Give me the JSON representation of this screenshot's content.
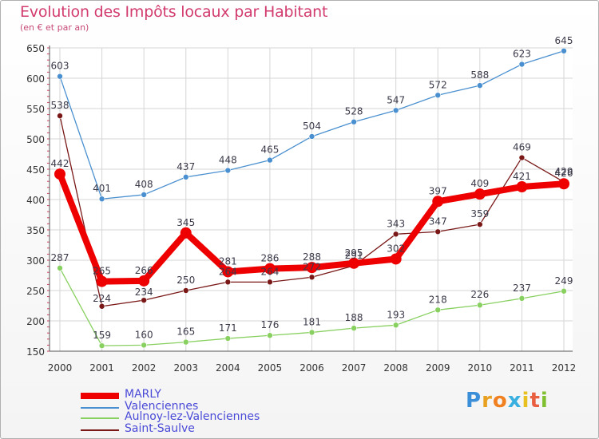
{
  "header": {
    "title": "Evolution des Impôts locaux par Habitant",
    "subtitle": "(en € et par an)"
  },
  "logo": {
    "letters": [
      "P",
      "r",
      "o",
      "x",
      "i",
      "t",
      "i"
    ],
    "colors": [
      "#3a8fd8",
      "#e8a020",
      "#f08020",
      "#3ab0e0",
      "#e8c020",
      "#e86040",
      "#80c030"
    ]
  },
  "chart_data": {
    "type": "line",
    "title": "Evolution des Impôts locaux par Habitant",
    "subtitle": "(en € et par an)",
    "x": [
      "2000",
      "2001",
      "2002",
      "2003",
      "2004",
      "2005",
      "2006",
      "2007",
      "2008",
      "2009",
      "2010",
      "2011",
      "2012"
    ],
    "ylim": [
      150,
      650
    ],
    "yticks": [
      150,
      200,
      250,
      300,
      350,
      400,
      450,
      500,
      550,
      600,
      650
    ],
    "grid": true,
    "legend": "bottom-left",
    "series": [
      {
        "name": "MARLY",
        "color": "#ee0000",
        "values": [
          442,
          265,
          266,
          345,
          281,
          286,
          288,
          295,
          302,
          397,
          409,
          421,
          426
        ]
      },
      {
        "name": "Valenciennes",
        "color": "#4a90d0",
        "values": [
          603,
          401,
          408,
          437,
          448,
          465,
          504,
          528,
          547,
          572,
          588,
          623,
          645
        ]
      },
      {
        "name": "Aulnoy-lez-Valenciennes",
        "color": "#88d060",
        "values": [
          287,
          159,
          160,
          165,
          171,
          176,
          181,
          188,
          193,
          218,
          226,
          237,
          249
        ]
      },
      {
        "name": "Saint-Saulve",
        "color": "#7a1818",
        "values": [
          538,
          224,
          234,
          250,
          264,
          264,
          272,
          291,
          343,
          347,
          359,
          469,
          429
        ]
      }
    ]
  }
}
